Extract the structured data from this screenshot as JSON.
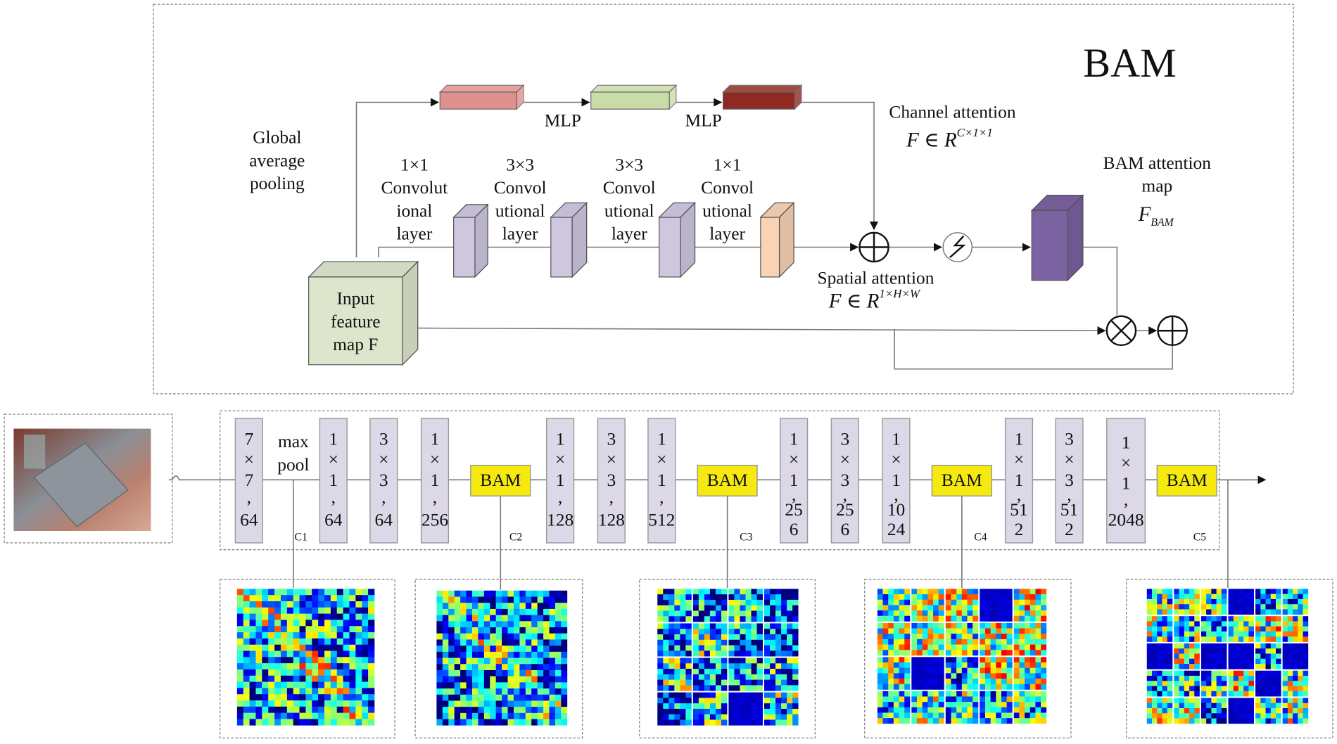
{
  "title": "BAM",
  "top": {
    "gap_label": [
      "Global",
      "average",
      "pooling"
    ],
    "mlp_labels": [
      "MLP",
      "MLP"
    ],
    "conv_layers": [
      {
        "lines": [
          "1×1",
          "Convolut",
          "ional",
          "layer"
        ]
      },
      {
        "lines": [
          "3×3",
          "Convol",
          "utional",
          "layer"
        ]
      },
      {
        "lines": [
          "3×3",
          "Convol",
          "utional",
          "layer"
        ]
      },
      {
        "lines": [
          "1×1",
          "Convol",
          "utional",
          "layer"
        ]
      }
    ],
    "input_label": [
      "Input",
      "feature",
      "map F"
    ],
    "channel_attention": {
      "label": "Channel attention",
      "formula_base": "F ∈ R",
      "formula_sup": "C×1×1"
    },
    "spatial_attention": {
      "label": "Spatial attention",
      "formula_base": "F ∈ R",
      "formula_sup": "1×H×W"
    },
    "bam_map": {
      "lines": [
        "BAM attention",
        "map"
      ],
      "symbol": "F",
      "subscript": "BAM"
    },
    "colors": {
      "mlp1": "#e0908c",
      "mlp2": "#c8dca8",
      "mlp3": "#8e2a22",
      "conv": "#cfc7e0",
      "conv_last": "#f9d3b5",
      "input": "#dde6cc",
      "bam_map": "#7b62a0"
    }
  },
  "pipeline": {
    "layers": [
      [
        "7",
        "×",
        "7",
        ",",
        "64"
      ],
      [
        "1",
        "×",
        "1",
        ",",
        "64"
      ],
      [
        "3",
        "×",
        "3",
        ",",
        "64"
      ],
      [
        "1",
        "×",
        "1",
        ",",
        "256"
      ],
      [
        "1",
        "×",
        "1",
        ",",
        "128"
      ],
      [
        "3",
        "×",
        "3",
        ",",
        "128"
      ],
      [
        "1",
        "×",
        "1",
        ",",
        "512"
      ],
      [
        "1",
        "×",
        "1",
        ",",
        "25",
        "6"
      ],
      [
        "3",
        "×",
        "3",
        ",",
        "25",
        "6"
      ],
      [
        "1",
        "×",
        "1",
        ",",
        "10",
        "24"
      ],
      [
        "1",
        "×",
        "1",
        ",",
        "51",
        "2"
      ],
      [
        "3",
        "×",
        "3",
        ",",
        "51",
        "2"
      ],
      [
        "1",
        "×",
        "1",
        ",",
        "2048"
      ]
    ],
    "maxpool": [
      "max",
      "pool"
    ],
    "bam_label": "BAM",
    "stage_labels": [
      "C1",
      "C2",
      "C3",
      "C4",
      "C5"
    ],
    "bam_color": "#f5e90f"
  }
}
